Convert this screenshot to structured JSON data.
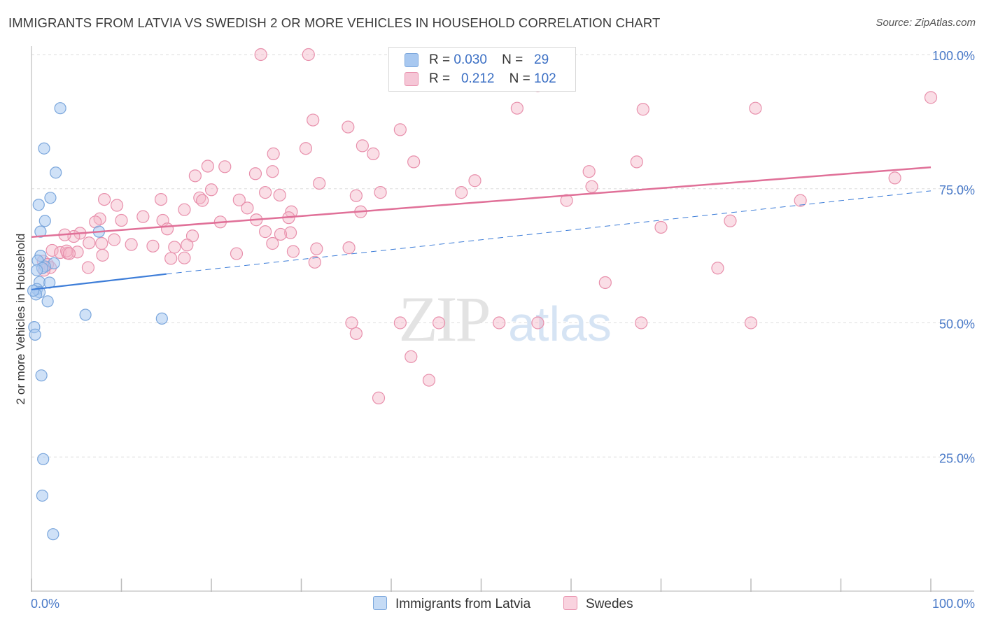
{
  "title": "IMMIGRANTS FROM LATVIA VS SWEDISH 2 OR MORE VEHICLES IN HOUSEHOLD CORRELATION CHART",
  "source": "Source: ZipAtlas.com",
  "watermark": {
    "zip": "ZIP",
    "atlas": "atlas"
  },
  "legend": {
    "rows": [
      {
        "r_label": "R =",
        "r_value": "0.030",
        "n_label": "N =",
        "n_value": "29",
        "color": "#a8c8f0"
      },
      {
        "r_label": "R =",
        "r_value": "0.212",
        "n_label": "N =",
        "n_value": "102",
        "color": "#f5b5c8"
      }
    ]
  },
  "bottom_legend": [
    {
      "label": "Immigrants from Latvia",
      "color": "#a8c8f0"
    },
    {
      "label": "Swedes",
      "color": "#f5b5c8"
    }
  ],
  "chart_data": {
    "type": "scatter",
    "title": "IMMIGRANTS FROM LATVIA VS SWEDISH 2 OR MORE VEHICLES IN HOUSEHOLD CORRELATION CHART",
    "ylabel": "2 or more Vehicles in Household",
    "xlabel": "",
    "xlim": [
      0,
      100
    ],
    "ylim": [
      0,
      105
    ],
    "x_tick_labels": [
      "0.0%",
      "100.0%"
    ],
    "y_ticks": [
      25,
      50,
      75,
      100
    ],
    "y_tick_labels": [
      "25.0%",
      "50.0%",
      "75.0%",
      "100.0%"
    ],
    "grid": true,
    "colors": {
      "latvia": "#a8c8f0",
      "latvia_stroke": "#7aa6dc",
      "latvia_line": "#3d7dd8",
      "swedes": "#f5b5c8",
      "swedes_stroke": "#e890ac",
      "swedes_line": "#e07098",
      "tick_label": "#4a7ac8"
    },
    "series": [
      {
        "name": "Immigrants from Latvia",
        "points": [
          [
            3.2,
            90.0
          ],
          [
            1.4,
            82.5
          ],
          [
            2.7,
            78.0
          ],
          [
            2.1,
            73.3
          ],
          [
            0.8,
            72.0
          ],
          [
            1.5,
            69.0
          ],
          [
            1.0,
            67.0
          ],
          [
            7.5,
            67.0
          ],
          [
            1.0,
            62.5
          ],
          [
            0.7,
            61.6
          ],
          [
            2.5,
            61.1
          ],
          [
            1.5,
            60.5
          ],
          [
            1.2,
            60.2
          ],
          [
            0.9,
            57.6
          ],
          [
            2.0,
            57.5
          ],
          [
            0.6,
            56.3
          ],
          [
            0.9,
            55.7
          ],
          [
            0.5,
            55.3
          ],
          [
            1.8,
            54.0
          ],
          [
            6.0,
            51.5
          ],
          [
            14.5,
            50.8
          ],
          [
            0.3,
            49.2
          ],
          [
            0.4,
            47.8
          ],
          [
            1.1,
            40.2
          ],
          [
            1.3,
            24.6
          ],
          [
            1.2,
            17.8
          ],
          [
            2.4,
            10.6
          ],
          [
            0.2,
            56.0
          ],
          [
            0.6,
            59.8
          ]
        ],
        "trend": {
          "x1": 0,
          "y1": 56.2,
          "x2": 15,
          "y2": 59.1,
          "dashed_to_x": 100,
          "dashed_to_y": 74.6
        }
      },
      {
        "name": "Swedes",
        "points": [
          [
            25.5,
            100.0
          ],
          [
            30.8,
            100.0
          ],
          [
            56.3,
            94.2
          ],
          [
            100.0,
            92.0
          ],
          [
            54.0,
            90.0
          ],
          [
            68.0,
            89.8
          ],
          [
            80.5,
            90.0
          ],
          [
            31.3,
            87.8
          ],
          [
            35.2,
            86.5
          ],
          [
            41.0,
            86.0
          ],
          [
            30.5,
            82.5
          ],
          [
            36.8,
            83.0
          ],
          [
            26.9,
            81.5
          ],
          [
            38.0,
            81.5
          ],
          [
            42.5,
            80.0
          ],
          [
            67.3,
            80.0
          ],
          [
            19.6,
            79.2
          ],
          [
            21.5,
            79.1
          ],
          [
            24.9,
            77.8
          ],
          [
            26.8,
            78.2
          ],
          [
            49.3,
            76.5
          ],
          [
            62.0,
            78.2
          ],
          [
            32.0,
            76.0
          ],
          [
            18.2,
            77.4
          ],
          [
            20.0,
            74.8
          ],
          [
            26.0,
            74.3
          ],
          [
            38.8,
            74.3
          ],
          [
            47.8,
            74.3
          ],
          [
            27.6,
            73.8
          ],
          [
            36.1,
            73.7
          ],
          [
            18.7,
            73.3
          ],
          [
            23.1,
            72.9
          ],
          [
            8.1,
            73.0
          ],
          [
            14.4,
            73.0
          ],
          [
            62.3,
            75.4
          ],
          [
            96.0,
            77.0
          ],
          [
            59.5,
            72.8
          ],
          [
            24.0,
            71.4
          ],
          [
            19.0,
            72.8
          ],
          [
            9.5,
            71.9
          ],
          [
            12.4,
            69.8
          ],
          [
            28.9,
            70.7
          ],
          [
            28.6,
            69.6
          ],
          [
            36.6,
            70.7
          ],
          [
            17.0,
            71.1
          ],
          [
            14.6,
            69.1
          ],
          [
            7.6,
            69.4
          ],
          [
            7.1,
            68.8
          ],
          [
            10.0,
            69.1
          ],
          [
            21.0,
            68.8
          ],
          [
            17.9,
            66.2
          ],
          [
            25.0,
            69.2
          ],
          [
            28.8,
            66.8
          ],
          [
            70.0,
            67.8
          ],
          [
            77.7,
            69.0
          ],
          [
            85.5,
            72.8
          ],
          [
            26.0,
            67.0
          ],
          [
            15.1,
            67.5
          ],
          [
            5.4,
            66.7
          ],
          [
            4.7,
            66.1
          ],
          [
            3.7,
            66.4
          ],
          [
            6.4,
            64.9
          ],
          [
            11.1,
            64.6
          ],
          [
            13.5,
            64.3
          ],
          [
            15.9,
            64.1
          ],
          [
            7.8,
            64.8
          ],
          [
            9.2,
            65.5
          ],
          [
            17.3,
            64.5
          ],
          [
            15.5,
            62.0
          ],
          [
            27.7,
            66.5
          ],
          [
            2.3,
            63.5
          ],
          [
            3.2,
            63.1
          ],
          [
            4.0,
            63.0
          ],
          [
            22.8,
            62.9
          ],
          [
            17.0,
            62.1
          ],
          [
            5.1,
            63.2
          ],
          [
            3.9,
            63.4
          ],
          [
            31.5,
            61.3
          ],
          [
            7.9,
            62.6
          ],
          [
            4.2,
            62.9
          ],
          [
            1.3,
            61.5
          ],
          [
            1.8,
            60.9
          ],
          [
            2.1,
            60.3
          ],
          [
            6.3,
            60.3
          ],
          [
            1.4,
            59.8
          ],
          [
            35.3,
            64.0
          ],
          [
            26.8,
            64.8
          ],
          [
            31.7,
            63.8
          ],
          [
            29.1,
            63.3
          ],
          [
            63.8,
            57.5
          ],
          [
            76.3,
            60.2
          ],
          [
            35.6,
            50.0
          ],
          [
            41.0,
            50.0
          ],
          [
            45.3,
            50.0
          ],
          [
            52.0,
            50.0
          ],
          [
            56.3,
            50.0
          ],
          [
            67.8,
            50.0
          ],
          [
            80.0,
            50.0
          ],
          [
            36.1,
            48.0
          ],
          [
            42.2,
            43.7
          ],
          [
            38.6,
            36.0
          ],
          [
            44.2,
            39.3
          ]
        ],
        "trend": {
          "x1": 0,
          "y1": 66.0,
          "x2": 100,
          "y2": 79.0
        }
      }
    ]
  }
}
